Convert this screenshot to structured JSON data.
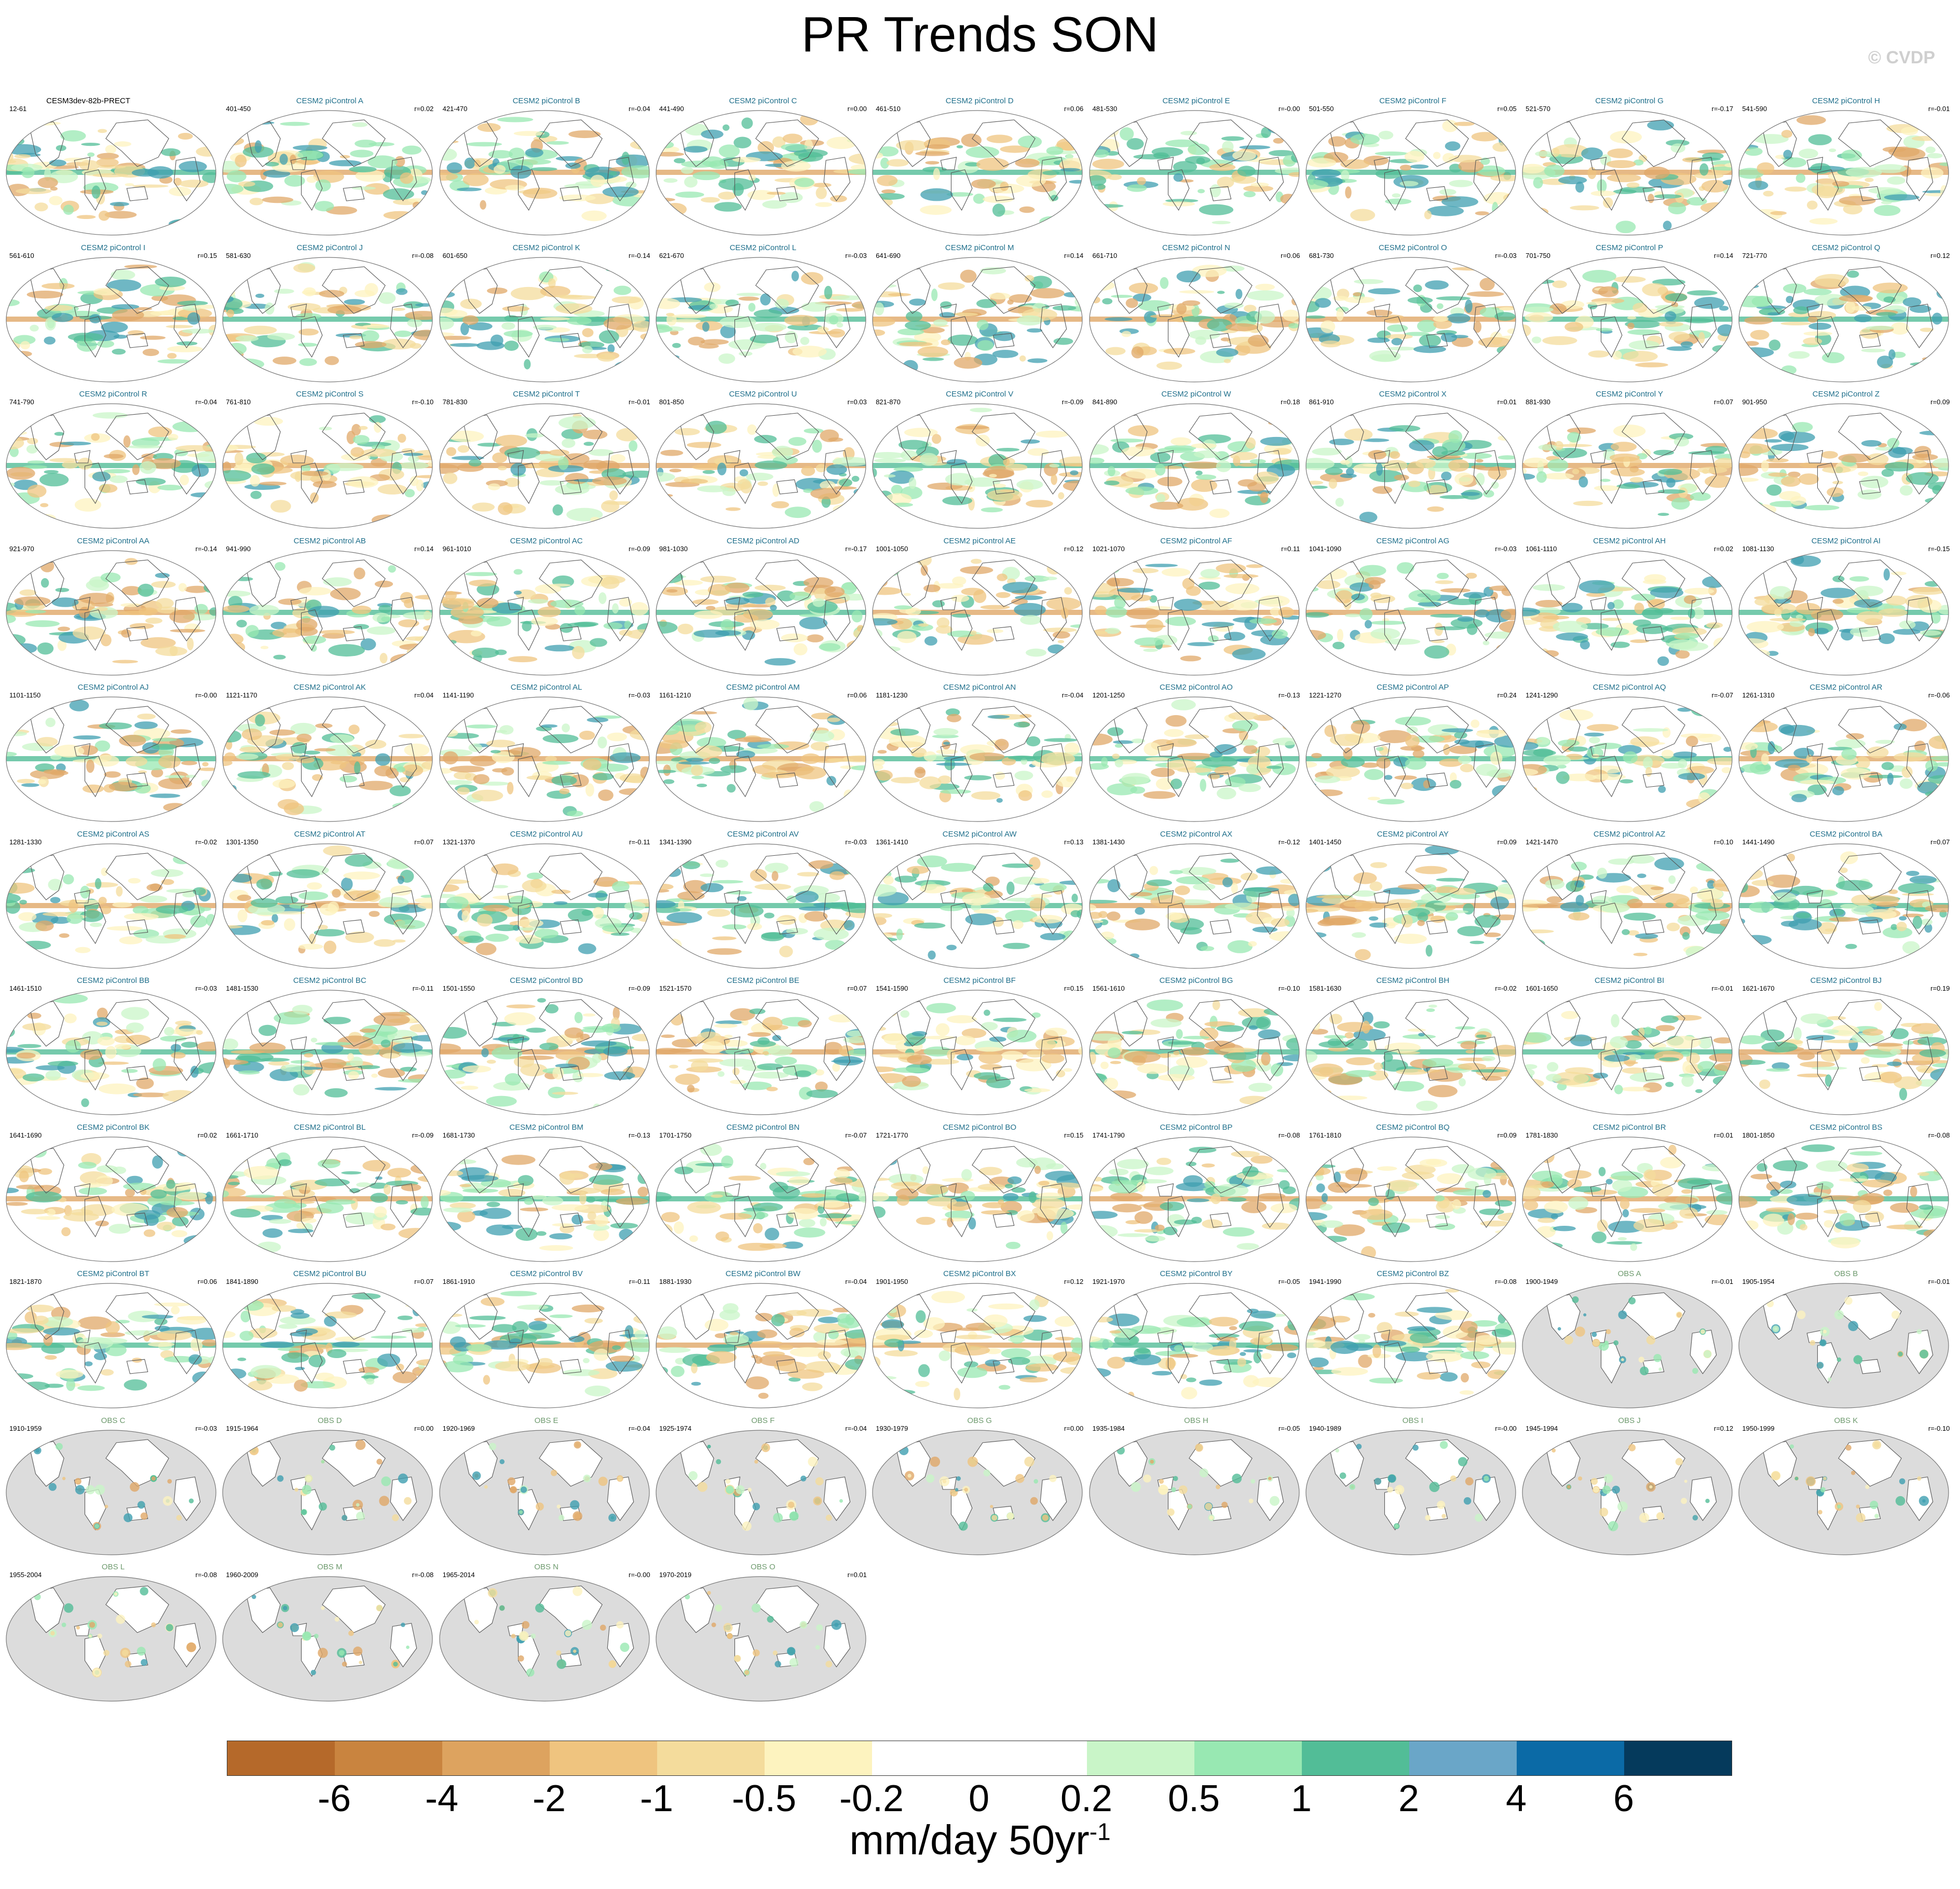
{
  "title": "PR Trends SON",
  "copyright": "© CVDP",
  "colors": {
    "ocean_obs": "#dcdcdc",
    "land_outline": "#555555",
    "model_label": "#1f6f8b",
    "obs_label": "#6e9a6e"
  },
  "panels": [
    {
      "name": "CESM3dev-82b-PRECT",
      "years": "12-61",
      "r": ""
    },
    {
      "name": "CESM2 piControl A",
      "years": "401-450",
      "r": "r=0.02"
    },
    {
      "name": "CESM2 piControl B",
      "years": "421-470",
      "r": "r=-0.04"
    },
    {
      "name": "CESM2 piControl C",
      "years": "441-490",
      "r": "r=0.00"
    },
    {
      "name": "CESM2 piControl D",
      "years": "461-510",
      "r": "r=0.06"
    },
    {
      "name": "CESM2 piControl E",
      "years": "481-530",
      "r": "r=-0.00"
    },
    {
      "name": "CESM2 piControl F",
      "years": "501-550",
      "r": "r=0.05"
    },
    {
      "name": "CESM2 piControl G",
      "years": "521-570",
      "r": "r=-0.17"
    },
    {
      "name": "CESM2 piControl H",
      "years": "541-590",
      "r": "r=-0.01"
    },
    {
      "name": "CESM2 piControl I",
      "years": "561-610",
      "r": "r=0.15"
    },
    {
      "name": "CESM2 piControl J",
      "years": "581-630",
      "r": "r=-0.08"
    },
    {
      "name": "CESM2 piControl K",
      "years": "601-650",
      "r": "r=-0.14"
    },
    {
      "name": "CESM2 piControl L",
      "years": "621-670",
      "r": "r=-0.03"
    },
    {
      "name": "CESM2 piControl M",
      "years": "641-690",
      "r": "r=0.14"
    },
    {
      "name": "CESM2 piControl N",
      "years": "661-710",
      "r": "r=0.06"
    },
    {
      "name": "CESM2 piControl O",
      "years": "681-730",
      "r": "r=-0.03"
    },
    {
      "name": "CESM2 piControl P",
      "years": "701-750",
      "r": "r=0.14"
    },
    {
      "name": "CESM2 piControl Q",
      "years": "721-770",
      "r": "r=0.12"
    },
    {
      "name": "CESM2 piControl R",
      "years": "741-790",
      "r": "r=-0.04"
    },
    {
      "name": "CESM2 piControl S",
      "years": "761-810",
      "r": "r=-0.10"
    },
    {
      "name": "CESM2 piControl T",
      "years": "781-830",
      "r": "r=-0.01"
    },
    {
      "name": "CESM2 piControl U",
      "years": "801-850",
      "r": "r=0.03"
    },
    {
      "name": "CESM2 piControl V",
      "years": "821-870",
      "r": "r=-0.09"
    },
    {
      "name": "CESM2 piControl W",
      "years": "841-890",
      "r": "r=0.18"
    },
    {
      "name": "CESM2 piControl X",
      "years": "861-910",
      "r": "r=0.01"
    },
    {
      "name": "CESM2 piControl Y",
      "years": "881-930",
      "r": "r=0.07"
    },
    {
      "name": "CESM2 piControl Z",
      "years": "901-950",
      "r": "r=0.09"
    },
    {
      "name": "CESM2 piControl AA",
      "years": "921-970",
      "r": "r=-0.14"
    },
    {
      "name": "CESM2 piControl AB",
      "years": "941-990",
      "r": "r=0.14"
    },
    {
      "name": "CESM2 piControl AC",
      "years": "961-1010",
      "r": "r=-0.09"
    },
    {
      "name": "CESM2 piControl AD",
      "years": "981-1030",
      "r": "r=-0.17"
    },
    {
      "name": "CESM2 piControl AE",
      "years": "1001-1050",
      "r": "r=0.12"
    },
    {
      "name": "CESM2 piControl AF",
      "years": "1021-1070",
      "r": "r=0.11"
    },
    {
      "name": "CESM2 piControl AG",
      "years": "1041-1090",
      "r": "r=-0.03"
    },
    {
      "name": "CESM2 piControl AH",
      "years": "1061-1110",
      "r": "r=0.02"
    },
    {
      "name": "CESM2 piControl AI",
      "years": "1081-1130",
      "r": "r=-0.15"
    },
    {
      "name": "CESM2 piControl AJ",
      "years": "1101-1150",
      "r": "r=-0.00"
    },
    {
      "name": "CESM2 piControl AK",
      "years": "1121-1170",
      "r": "r=0.04"
    },
    {
      "name": "CESM2 piControl AL",
      "years": "1141-1190",
      "r": "r=-0.03"
    },
    {
      "name": "CESM2 piControl AM",
      "years": "1161-1210",
      "r": "r=0.06"
    },
    {
      "name": "CESM2 piControl AN",
      "years": "1181-1230",
      "r": "r=-0.04"
    },
    {
      "name": "CESM2 piControl AO",
      "years": "1201-1250",
      "r": "r=-0.13"
    },
    {
      "name": "CESM2 piControl AP",
      "years": "1221-1270",
      "r": "r=0.24"
    },
    {
      "name": "CESM2 piControl AQ",
      "years": "1241-1290",
      "r": "r=-0.07"
    },
    {
      "name": "CESM2 piControl AR",
      "years": "1261-1310",
      "r": "r=-0.06"
    },
    {
      "name": "CESM2 piControl AS",
      "years": "1281-1330",
      "r": "r=-0.02"
    },
    {
      "name": "CESM2 piControl AT",
      "years": "1301-1350",
      "r": "r=0.07"
    },
    {
      "name": "CESM2 piControl AU",
      "years": "1321-1370",
      "r": "r=-0.11"
    },
    {
      "name": "CESM2 piControl AV",
      "years": "1341-1390",
      "r": "r=-0.03"
    },
    {
      "name": "CESM2 piControl AW",
      "years": "1361-1410",
      "r": "r=0.13"
    },
    {
      "name": "CESM2 piControl AX",
      "years": "1381-1430",
      "r": "r=-0.12"
    },
    {
      "name": "CESM2 piControl AY",
      "years": "1401-1450",
      "r": "r=0.09"
    },
    {
      "name": "CESM2 piControl AZ",
      "years": "1421-1470",
      "r": "r=0.10"
    },
    {
      "name": "CESM2 piControl BA",
      "years": "1441-1490",
      "r": "r=0.07"
    },
    {
      "name": "CESM2 piControl BB",
      "years": "1461-1510",
      "r": "r=-0.03"
    },
    {
      "name": "CESM2 piControl BC",
      "years": "1481-1530",
      "r": "r=-0.11"
    },
    {
      "name": "CESM2 piControl BD",
      "years": "1501-1550",
      "r": "r=-0.09"
    },
    {
      "name": "CESM2 piControl BE",
      "years": "1521-1570",
      "r": "r=0.07"
    },
    {
      "name": "CESM2 piControl BF",
      "years": "1541-1590",
      "r": "r=0.15"
    },
    {
      "name": "CESM2 piControl BG",
      "years": "1561-1610",
      "r": "r=-0.10"
    },
    {
      "name": "CESM2 piControl BH",
      "years": "1581-1630",
      "r": "r=-0.02"
    },
    {
      "name": "CESM2 piControl BI",
      "years": "1601-1650",
      "r": "r=-0.01"
    },
    {
      "name": "CESM2 piControl BJ",
      "years": "1621-1670",
      "r": "r=0.19"
    },
    {
      "name": "CESM2 piControl BK",
      "years": "1641-1690",
      "r": "r=0.02"
    },
    {
      "name": "CESM2 piControl BL",
      "years": "1661-1710",
      "r": "r=-0.09"
    },
    {
      "name": "CESM2 piControl BM",
      "years": "1681-1730",
      "r": "r=-0.13"
    },
    {
      "name": "CESM2 piControl BN",
      "years": "1701-1750",
      "r": "r=-0.07"
    },
    {
      "name": "CESM2 piControl BO",
      "years": "1721-1770",
      "r": "r=0.15"
    },
    {
      "name": "CESM2 piControl BP",
      "years": "1741-1790",
      "r": "r=-0.08"
    },
    {
      "name": "CESM2 piControl BQ",
      "years": "1761-1810",
      "r": "r=0.09"
    },
    {
      "name": "CESM2 piControl BR",
      "years": "1781-1830",
      "r": "r=0.01"
    },
    {
      "name": "CESM2 piControl BS",
      "years": "1801-1850",
      "r": "r=-0.08"
    },
    {
      "name": "CESM2 piControl BT",
      "years": "1821-1870",
      "r": "r=0.06"
    },
    {
      "name": "CESM2 piControl BU",
      "years": "1841-1890",
      "r": "r=0.07"
    },
    {
      "name": "CESM2 piControl BV",
      "years": "1861-1910",
      "r": "r=-0.11"
    },
    {
      "name": "CESM2 piControl BW",
      "years": "1881-1930",
      "r": "r=-0.04"
    },
    {
      "name": "CESM2 piControl BX",
      "years": "1901-1950",
      "r": "r=0.12"
    },
    {
      "name": "CESM2 piControl BY",
      "years": "1921-1970",
      "r": "r=-0.05"
    },
    {
      "name": "CESM2 piControl BZ",
      "years": "1941-1990",
      "r": "r=-0.08"
    },
    {
      "name": "OBS A",
      "years": "1900-1949",
      "r": "r=-0.01",
      "obs": true
    },
    {
      "name": "OBS B",
      "years": "1905-1954",
      "r": "r=-0.01",
      "obs": true
    },
    {
      "name": "OBS C",
      "years": "1910-1959",
      "r": "r=-0.03",
      "obs": true
    },
    {
      "name": "OBS D",
      "years": "1915-1964",
      "r": "r=0.00",
      "obs": true
    },
    {
      "name": "OBS E",
      "years": "1920-1969",
      "r": "r=-0.04",
      "obs": true
    },
    {
      "name": "OBS F",
      "years": "1925-1974",
      "r": "r=-0.04",
      "obs": true
    },
    {
      "name": "OBS G",
      "years": "1930-1979",
      "r": "r=0.00",
      "obs": true
    },
    {
      "name": "OBS H",
      "years": "1935-1984",
      "r": "r=-0.05",
      "obs": true
    },
    {
      "name": "OBS I",
      "years": "1940-1989",
      "r": "r=-0.00",
      "obs": true
    },
    {
      "name": "OBS J",
      "years": "1945-1994",
      "r": "r=0.12",
      "obs": true
    },
    {
      "name": "OBS K",
      "years": "1950-1999",
      "r": "r=-0.10",
      "obs": true
    },
    {
      "name": "OBS L",
      "years": "1955-2004",
      "r": "r=-0.08",
      "obs": true
    },
    {
      "name": "OBS M",
      "years": "1960-2009",
      "r": "r=-0.08",
      "obs": true
    },
    {
      "name": "OBS N",
      "years": "1965-2014",
      "r": "r=-0.00",
      "obs": true
    },
    {
      "name": "OBS O",
      "years": "1970-2019",
      "r": "r=0.01",
      "obs": true
    }
  ],
  "colorbar": {
    "colors": [
      "#b5692a",
      "#c9843f",
      "#dda35f",
      "#efc47f",
      "#f4dc9c",
      "#fdf3bf",
      "#ffffff",
      "#ffffff",
      "#c9f5c8",
      "#98e8b2",
      "#52bd97",
      "#6aa6c8",
      "#0b6aa6",
      "#053a5c"
    ],
    "labels": [
      "-6",
      "-4",
      "-2",
      "-1",
      "-0.5",
      "-0.2",
      "0",
      "0.2",
      "0.5",
      "1",
      "2",
      "4",
      "6"
    ]
  },
  "units": {
    "text": "mm/day 50yr",
    "sup": "-1"
  }
}
